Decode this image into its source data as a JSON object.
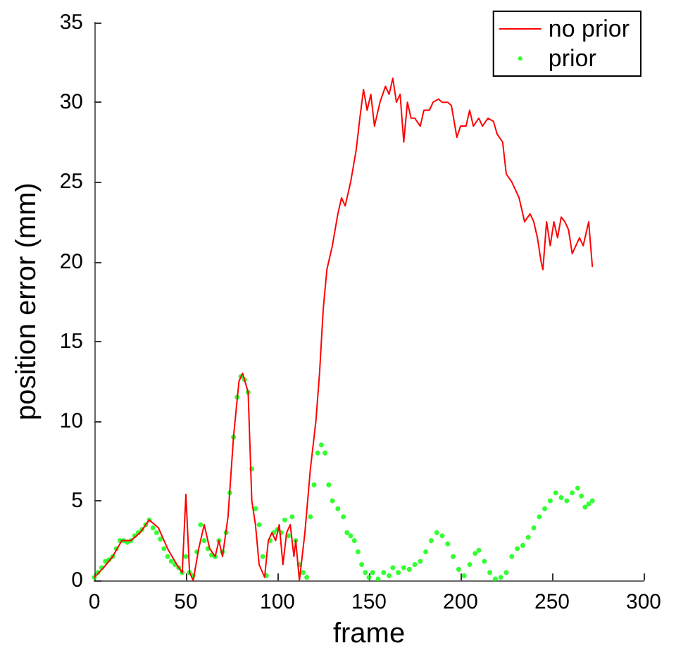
{
  "chart_data": {
    "type": "line",
    "xlabel": "frame",
    "ylabel": "position error (mm)",
    "xlim": [
      0,
      300
    ],
    "xticks": [
      0,
      50,
      100,
      150,
      200,
      250,
      300
    ],
    "ylim": [
      0,
      35
    ],
    "yticks": [
      0,
      5,
      10,
      15,
      20,
      25,
      30,
      35
    ],
    "grid": false,
    "legend": "top right",
    "series": [
      {
        "name": "no prior",
        "color": "#ff0000",
        "marker": "none",
        "line_style": "solid",
        "x": [
          0,
          5,
          10,
          15,
          20,
          25,
          30,
          35,
          40,
          45,
          48,
          50,
          52,
          54,
          57,
          60,
          63,
          66,
          68,
          70,
          73,
          76,
          79,
          81,
          84,
          86,
          88,
          90,
          93,
          95,
          97,
          99,
          101,
          103,
          105,
          107,
          109,
          110,
          112,
          115,
          118,
          121,
          123,
          125,
          127,
          130,
          133,
          135,
          137,
          140,
          143,
          145,
          147,
          149,
          151,
          153,
          156,
          159,
          161,
          163,
          165,
          167,
          169,
          171,
          173,
          175,
          178,
          180,
          183,
          185,
          188,
          190,
          193,
          195,
          198,
          200,
          203,
          205,
          207,
          210,
          212,
          215,
          218,
          220,
          223,
          225,
          228,
          230,
          232,
          235,
          238,
          240,
          242,
          244,
          245,
          247,
          249,
          251,
          253,
          255,
          257,
          259,
          261,
          263,
          265,
          267,
          269,
          270,
          272
        ],
        "values": [
          0.2,
          0.8,
          1.5,
          2.5,
          2.5,
          3.0,
          3.8,
          3.3,
          2.0,
          1.0,
          0.5,
          5.4,
          0.5,
          0,
          2.0,
          3.5,
          2.0,
          1.5,
          2.5,
          1.5,
          4,
          9,
          12.5,
          13,
          11.8,
          5,
          3.5,
          1,
          0.2,
          2.5,
          3,
          2.5,
          3.5,
          1,
          3,
          3.5,
          1.5,
          2.5,
          0,
          3,
          7,
          10,
          13,
          17,
          19.5,
          21,
          23,
          24,
          23.5,
          25,
          27,
          29,
          30.8,
          29.5,
          30.5,
          28.5,
          30,
          31,
          30.5,
          31.5,
          30,
          30.5,
          27.5,
          30,
          29,
          29,
          28.5,
          29.5,
          29.5,
          30,
          30.2,
          30,
          30,
          29.8,
          27.8,
          28.5,
          28.5,
          29.5,
          28.5,
          29,
          28.5,
          29,
          28.8,
          28,
          27.5,
          25.5,
          25,
          24.5,
          24,
          22.5,
          23,
          22.5,
          21.5,
          20,
          19.5,
          22.5,
          21,
          22.5,
          21.5,
          22.8,
          22.5,
          22,
          20.5,
          21,
          21.5,
          21,
          22,
          22.5,
          19.7
        ]
      },
      {
        "name": "prior",
        "type": "scatter",
        "color": "#00ff00",
        "marker": "circle",
        "x": [
          0,
          2,
          4,
          6,
          8,
          10,
          12,
          14,
          16,
          18,
          20,
          22,
          24,
          26,
          28,
          30,
          32,
          34,
          36,
          38,
          40,
          42,
          44,
          46,
          48,
          50,
          52,
          54,
          56,
          58,
          60,
          62,
          64,
          66,
          68,
          70,
          72,
          74,
          76,
          78,
          80,
          82,
          84,
          86,
          88,
          90,
          92,
          94,
          96,
          98,
          100,
          102,
          104,
          106,
          108,
          110,
          112,
          114,
          116,
          118,
          120,
          122,
          124,
          126,
          128,
          130,
          133,
          136,
          138,
          140,
          142,
          144,
          146,
          148,
          150,
          152,
          155,
          158,
          161,
          163,
          166,
          169,
          172,
          175,
          178,
          181,
          184,
          187,
          190,
          193,
          196,
          199,
          202,
          205,
          208,
          210,
          213,
          216,
          219,
          222,
          225,
          228,
          231,
          234,
          237,
          240,
          243,
          246,
          249,
          252,
          255,
          258,
          261,
          264,
          266,
          268,
          270,
          272
        ],
        "values": [
          0.2,
          0.5,
          0.8,
          1.2,
          1.3,
          1.5,
          2.0,
          2.5,
          2.5,
          2.4,
          2.5,
          2.8,
          3.0,
          3.2,
          3.5,
          3.8,
          3.3,
          3.0,
          2.6,
          2.0,
          1.5,
          1.2,
          1.0,
          0.8,
          0.5,
          1.5,
          0.5,
          0.3,
          1.8,
          3.5,
          2.5,
          2.0,
          1.6,
          1.5,
          2.5,
          1.8,
          3.0,
          5.5,
          9.0,
          11.5,
          12.8,
          12.6,
          11.8,
          7.0,
          4.5,
          3.5,
          1.5,
          0.3,
          2.5,
          3.0,
          3.2,
          3.0,
          3.8,
          2.8,
          4.0,
          2.5,
          1.0,
          0.5,
          0.2,
          4.0,
          6.0,
          8.0,
          8.5,
          8.0,
          6.0,
          5.0,
          4.5,
          4.0,
          3.0,
          2.8,
          2.5,
          1.8,
          1.0,
          0.5,
          0.2,
          0.5,
          0.1,
          0.5,
          0.3,
          0.8,
          0.5,
          0.8,
          0.7,
          1.0,
          1.2,
          1.8,
          2.5,
          3.0,
          2.8,
          2.3,
          1.5,
          0.7,
          0.3,
          1.0,
          1.7,
          1.9,
          1.2,
          0.5,
          0.1,
          0.2,
          0.5,
          1.5,
          2.0,
          2.2,
          2.7,
          3.3,
          4.0,
          4.5,
          5.0,
          5.5,
          5.2,
          5.0,
          5.5,
          5.8,
          5.3,
          4.6,
          4.8,
          5.0
        ]
      }
    ]
  }
}
